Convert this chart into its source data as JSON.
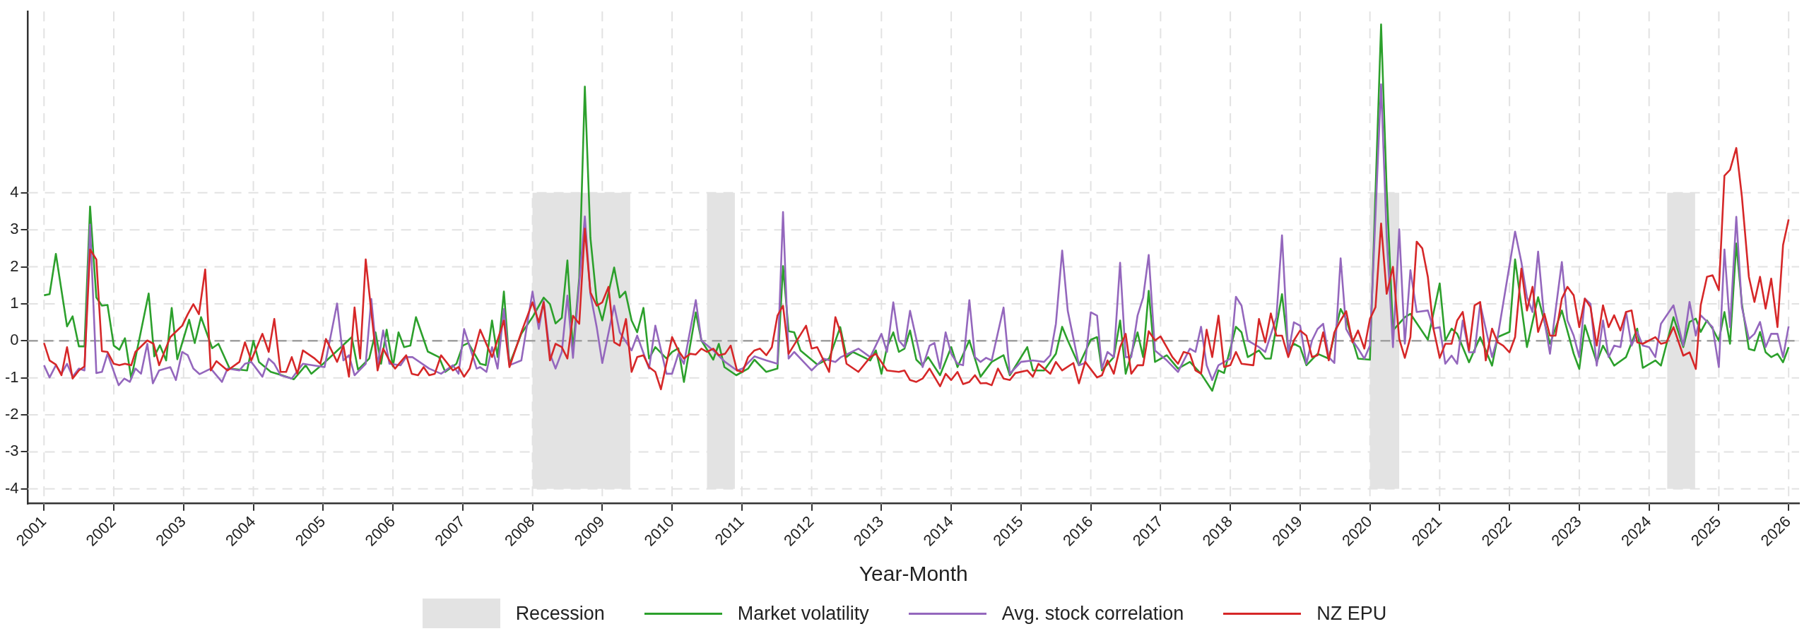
{
  "chart_data": {
    "type": "line",
    "xlabel": "Year-Month",
    "xlim": [
      2000.77,
      2026.15
    ],
    "xticks": [
      2001,
      2002,
      2003,
      2004,
      2005,
      2006,
      2007,
      2008,
      2009,
      2010,
      2011,
      2012,
      2013,
      2014,
      2015,
      2016,
      2017,
      2018,
      2019,
      2020,
      2021,
      2022,
      2023,
      2024,
      2025,
      2026
    ],
    "ylim": [
      -4.4,
      8.9
    ],
    "yticks": [
      -4,
      -3,
      -2,
      -1,
      0,
      1,
      2,
      3,
      4
    ],
    "grid": true,
    "legend": "bottom",
    "marker": "none",
    "ref_lines": [
      {
        "axis": "y",
        "value": 0,
        "color": "#a0a0a0",
        "line_style": "dashed"
      }
    ],
    "bands": [
      {
        "axis": "x",
        "from": 2008.0,
        "to": 2009.4,
        "label": "Recession",
        "color": "#e3e3e3"
      },
      {
        "axis": "x",
        "from": 2010.5,
        "to": 2010.9,
        "color": "#e3e3e3"
      },
      {
        "axis": "x",
        "from": 2020.0,
        "to": 2020.42,
        "color": "#e3e3e3"
      },
      {
        "axis": "x",
        "from": 2024.26,
        "to": 2024.66,
        "color": "#e3e3e3"
      }
    ],
    "series": [
      {
        "name": "Market volatility",
        "color": "#2ca02c",
        "x": [
          2001.0,
          2001.08,
          2001.17,
          2001.33,
          2001.41,
          2001.5,
          2001.58,
          2001.66,
          2001.75,
          2001.83,
          2001.91,
          2002.0,
          2002.08,
          2002.16,
          2002.25,
          2002.5,
          2002.58,
          2002.66,
          2002.75,
          2002.83,
          2002.91,
          2003.08,
          2003.16,
          2003.25,
          2003.41,
          2003.5,
          2003.66,
          2003.91,
          2004.0,
          2004.08,
          2004.25,
          2004.41,
          2004.58,
          2004.75,
          2004.83,
          2005.0,
          2005.41,
          2005.5,
          2005.66,
          2005.75,
          2005.83,
          2005.91,
          2006.0,
          2006.08,
          2006.16,
          2006.25,
          2006.33,
          2006.5,
          2006.66,
          2006.75,
          2006.91,
          2007.0,
          2007.08,
          2007.25,
          2007.33,
          2007.42,
          2007.5,
          2007.59,
          2007.67,
          2007.84,
          2008.0,
          2008.16,
          2008.25,
          2008.33,
          2008.42,
          2008.5,
          2008.58,
          2008.67,
          2008.75,
          2008.83,
          2008.92,
          2009.0,
          2009.17,
          2009.25,
          2009.33,
          2009.42,
          2009.5,
          2009.59,
          2009.67,
          2009.76,
          2009.92,
          2010.0,
          2010.09,
          2010.17,
          2010.34,
          2010.42,
          2010.59,
          2010.67,
          2010.75,
          2010.92,
          2011.09,
          2011.18,
          2011.35,
          2011.51,
          2011.59,
          2011.67,
          2011.75,
          2011.84,
          2012.08,
          2012.25,
          2012.41,
          2012.5,
          2012.59,
          2012.84,
          2012.92,
          2013.0,
          2013.08,
          2013.17,
          2013.25,
          2013.33,
          2013.41,
          2013.5,
          2013.58,
          2013.67,
          2013.84,
          2014.0,
          2014.09,
          2014.26,
          2014.42,
          2014.58,
          2014.75,
          2014.84,
          2015.09,
          2015.17,
          2015.33,
          2015.5,
          2015.59,
          2015.67,
          2015.83,
          2016.0,
          2016.09,
          2016.16,
          2016.33,
          2016.42,
          2016.5,
          2016.67,
          2016.75,
          2016.83,
          2016.92,
          2017.09,
          2017.25,
          2017.42,
          2017.58,
          2017.74,
          2017.83,
          2017.91,
          2018.08,
          2018.16,
          2018.25,
          2018.41,
          2018.5,
          2018.58,
          2018.74,
          2018.83,
          2018.91,
          2019.0,
          2019.09,
          2019.25,
          2019.41,
          2019.58,
          2019.66,
          2019.83,
          2020.0,
          2020.16,
          2020.24,
          2020.33,
          2020.5,
          2020.58,
          2020.83,
          2021.0,
          2021.08,
          2021.17,
          2021.25,
          2021.42,
          2021.58,
          2021.75,
          2021.83,
          2022.0,
          2022.08,
          2022.25,
          2022.41,
          2022.58,
          2022.75,
          2022.92,
          2023.0,
          2023.08,
          2023.25,
          2023.34,
          2023.5,
          2023.67,
          2023.83,
          2023.91,
          2024.09,
          2024.17,
          2024.35,
          2024.49,
          2024.58,
          2024.67,
          2024.74,
          2024.83,
          2024.91,
          2025.0,
          2025.08,
          2025.16,
          2025.25,
          2025.33,
          2025.43,
          2025.51,
          2025.59,
          2025.67,
          2025.75,
          2025.84,
          2025.92,
          2026.0
        ],
        "values": [
          1.23,
          1.26,
          2.35,
          0.39,
          0.66,
          -0.15,
          -0.15,
          3.63,
          1.17,
          0.95,
          0.97,
          -0.13,
          -0.24,
          0.07,
          -1.02,
          1.28,
          -0.42,
          -0.12,
          -0.53,
          0.89,
          -0.5,
          0.57,
          -0.06,
          0.64,
          -0.2,
          -0.08,
          -0.75,
          -0.8,
          0,
          -0.57,
          -0.84,
          -0.93,
          -1.04,
          -0.66,
          -0.89,
          -0.62,
          0.1,
          -0.78,
          -0.48,
          0.23,
          -0.62,
          0.3,
          -0.69,
          0.23,
          -0.17,
          -0.13,
          0.64,
          -0.29,
          -0.44,
          -0.84,
          -0.62,
          -0.13,
          -0.06,
          -0.62,
          -0.66,
          0.55,
          -0.44,
          1.33,
          -0.64,
          0.19,
          0.64,
          1.17,
          0.99,
          0.47,
          0.62,
          2.17,
          -0.26,
          1.71,
          6.87,
          2.78,
          1.08,
          0.55,
          1.98,
          1.17,
          1.33,
          0.55,
          0.23,
          0.89,
          -0.48,
          -0.17,
          -0.48,
          -0.3,
          -0.2,
          -1.11,
          0.77,
          0.01,
          -0.51,
          -0.08,
          -0.71,
          -0.93,
          -0.75,
          -0.51,
          -0.84,
          -0.75,
          2.02,
          0.26,
          0.23,
          -0.26,
          -0.64,
          -0.48,
          0.37,
          -0.44,
          -0.3,
          -0.53,
          -0.26,
          -0.89,
          -0.17,
          0.23,
          -0.3,
          -0.21,
          0.28,
          -0.51,
          -0.66,
          -0.44,
          -0.93,
          -0.17,
          -0.71,
          0.01,
          -0.97,
          -0.57,
          -0.39,
          -0.93,
          -0.17,
          -0.8,
          -0.8,
          -0.35,
          0.38,
          0.01,
          -0.66,
          0.03,
          0.1,
          -0.8,
          -0.44,
          0.55,
          -0.89,
          0.23,
          -0.44,
          1.35,
          -0.57,
          -0.39,
          -0.75,
          -0.57,
          -0.89,
          -1.35,
          -0.8,
          -0.87,
          0.38,
          0.23,
          -0.44,
          -0.26,
          -0.48,
          -0.48,
          1.26,
          -0.26,
          -0.08,
          -0.17,
          -0.66,
          -0.35,
          -0.48,
          0.86,
          0.59,
          -0.48,
          -0.51,
          8.55,
          4.08,
          0.28,
          0.64,
          0.73,
          0.03,
          1.55,
          0.01,
          0.33,
          0.19,
          -0.58,
          0.1,
          -0.67,
          0.1,
          0.24,
          2.2,
          -0.17,
          1.18,
          -0.08,
          0.82,
          -0.35,
          -0.76,
          0.42,
          -0.58,
          -0.13,
          -0.67,
          -0.44,
          0.33,
          -0.73,
          -0.53,
          -0.67,
          0.64,
          -0.17,
          0.51,
          0.6,
          0.24,
          0.55,
          0.33,
          0.0,
          0.78,
          -0.08,
          2.63,
          1.0,
          -0.22,
          -0.26,
          0.24,
          -0.31,
          -0.44,
          -0.35,
          -0.58,
          -0.17
        ]
      },
      {
        "name": "Avg. stock correlation",
        "color": "#9467bd",
        "x": [
          2001.0,
          2001.08,
          2001.17,
          2001.25,
          2001.33,
          2001.41,
          2001.5,
          2001.58,
          2001.66,
          2001.75,
          2001.83,
          2001.91,
          2002.07,
          2002.15,
          2002.23,
          2002.31,
          2002.39,
          2002.48,
          2002.56,
          2002.65,
          2002.81,
          2002.89,
          2002.98,
          2003.06,
          2003.14,
          2003.23,
          2003.39,
          2003.55,
          2003.63,
          2003.8,
          2003.88,
          2003.97,
          2004.13,
          2004.22,
          2004.3,
          2004.39,
          2004.55,
          2004.71,
          2005.02,
          2005.2,
          2005.29,
          2005.37,
          2005.45,
          2005.61,
          2005.69,
          2005.78,
          2005.86,
          2005.95,
          2006.11,
          2006.19,
          2006.28,
          2006.52,
          2006.69,
          2006.86,
          2006.94,
          2007.02,
          2007.2,
          2007.25,
          2007.34,
          2007.42,
          2007.5,
          2007.59,
          2007.67,
          2007.84,
          2008.0,
          2008.09,
          2008.16,
          2008.25,
          2008.33,
          2008.42,
          2008.5,
          2008.58,
          2008.75,
          2008.83,
          2008.92,
          2009.0,
          2009.17,
          2009.25,
          2009.42,
          2009.5,
          2009.67,
          2009.76,
          2009.92,
          2010.0,
          2010.09,
          2010.17,
          2010.34,
          2010.42,
          2010.59,
          2010.76,
          2010.93,
          2011.01,
          2011.18,
          2011.35,
          2011.51,
          2011.59,
          2011.67,
          2011.75,
          2012.0,
          2012.17,
          2012.34,
          2012.42,
          2012.67,
          2012.84,
          2013.0,
          2013.08,
          2013.17,
          2013.25,
          2013.33,
          2013.41,
          2013.59,
          2013.69,
          2013.76,
          2013.84,
          2013.92,
          2014.0,
          2014.09,
          2014.17,
          2014.26,
          2014.34,
          2014.42,
          2014.5,
          2014.58,
          2014.75,
          2014.84,
          2015.0,
          2015.17,
          2015.33,
          2015.42,
          2015.5,
          2015.59,
          2015.67,
          2015.83,
          2015.92,
          2016.0,
          2016.09,
          2016.16,
          2016.24,
          2016.33,
          2016.42,
          2016.5,
          2016.58,
          2016.67,
          2016.75,
          2016.83,
          2016.92,
          2017.09,
          2017.25,
          2017.42,
          2017.5,
          2017.58,
          2017.66,
          2017.74,
          2017.83,
          2018.0,
          2018.08,
          2018.16,
          2018.25,
          2018.41,
          2018.5,
          2018.66,
          2018.74,
          2018.83,
          2018.91,
          2019.0,
          2019.09,
          2019.17,
          2019.25,
          2019.33,
          2019.41,
          2019.49,
          2019.58,
          2019.66,
          2019.75,
          2019.83,
          2019.92,
          2020.0,
          2020.16,
          2020.24,
          2020.33,
          2020.42,
          2020.5,
          2020.58,
          2020.67,
          2020.83,
          2020.91,
          2021.0,
          2021.08,
          2021.17,
          2021.25,
          2021.33,
          2021.42,
          2021.5,
          2021.58,
          2021.75,
          2021.83,
          2022.08,
          2022.17,
          2022.25,
          2022.33,
          2022.41,
          2022.5,
          2022.58,
          2022.75,
          2022.83,
          2022.92,
          2023.0,
          2023.08,
          2023.16,
          2023.25,
          2023.34,
          2023.42,
          2023.5,
          2023.59,
          2023.67,
          2023.75,
          2023.83,
          2023.91,
          2024.0,
          2024.09,
          2024.17,
          2024.35,
          2024.49,
          2024.58,
          2024.67,
          2024.74,
          2024.91,
          2025.0,
          2025.08,
          2025.16,
          2025.25,
          2025.33,
          2025.43,
          2025.51,
          2025.59,
          2025.67,
          2025.75,
          2025.84,
          2025.92,
          2026.0
        ],
        "values": [
          -0.66,
          -0.99,
          -0.66,
          -0.89,
          -0.62,
          -0.97,
          -0.75,
          -0.8,
          3.14,
          -0.87,
          -0.84,
          -0.35,
          -1.2,
          -1.02,
          -1.11,
          -0.75,
          -0.89,
          -0.08,
          -1.15,
          -0.8,
          -0.71,
          -1.06,
          -0.3,
          -0.39,
          -0.75,
          -0.9,
          -0.75,
          -1.11,
          -0.75,
          -0.8,
          -0.62,
          -0.57,
          -0.97,
          -0.48,
          -0.62,
          -0.93,
          -1.02,
          -0.62,
          -0.71,
          1.01,
          -0.53,
          -0.39,
          -0.93,
          -0.62,
          1.13,
          -0.66,
          0.28,
          -0.62,
          -0.66,
          -0.44,
          -0.44,
          -0.75,
          -0.89,
          -0.66,
          -0.89,
          0.32,
          -0.75,
          -0.71,
          -0.84,
          -0.17,
          -0.75,
          0.86,
          -0.66,
          -0.53,
          1.33,
          0.32,
          1.08,
          -0.35,
          -0.75,
          -0.3,
          1.22,
          -0.46,
          3.36,
          1.26,
          0.37,
          -0.6,
          0.95,
          0.23,
          -0.26,
          0.14,
          -0.75,
          0.41,
          -0.89,
          -0.89,
          -0.35,
          -0.62,
          1.1,
          0.01,
          -0.26,
          -0.57,
          -0.8,
          -0.75,
          -0.42,
          -0.53,
          -0.62,
          3.48,
          -0.48,
          -0.3,
          -0.8,
          -0.48,
          -0.57,
          -0.44,
          -0.21,
          -0.44,
          0.19,
          -0.3,
          1.04,
          0.01,
          -0.17,
          0.81,
          -0.71,
          -0.13,
          -0.06,
          -0.75,
          0.23,
          -0.35,
          -0.62,
          -0.66,
          1.1,
          -0.44,
          -0.57,
          -0.46,
          -0.53,
          0.9,
          -0.89,
          -0.57,
          -0.53,
          -0.57,
          -0.39,
          0.46,
          2.44,
          0.81,
          -0.66,
          -0.6,
          0.77,
          0.68,
          -0.75,
          -0.3,
          -0.44,
          2.11,
          -0.44,
          -0.44,
          0.68,
          1.17,
          2.32,
          -0.26,
          -0.53,
          -0.84,
          -0.21,
          -0.3,
          0.38,
          -0.66,
          -1.06,
          -0.66,
          -0.48,
          1.19,
          0.95,
          0.01,
          -0.17,
          -0.3,
          0.64,
          2.85,
          -0.35,
          0.5,
          0.41,
          -0.62,
          0.01,
          0.32,
          0.46,
          -0.44,
          -0.6,
          2.23,
          0.32,
          0.01,
          -0.21,
          -0.48,
          -0.13,
          6.93,
          2.81,
          -0.17,
          3.01,
          -0.08,
          1.91,
          0.78,
          0.82,
          0.33,
          0.37,
          -0.62,
          -0.4,
          -0.62,
          0.55,
          -0.31,
          -0.31,
          1.0,
          -0.44,
          0.1,
          2.95,
          2.13,
          1.18,
          0.78,
          2.41,
          0.55,
          -0.35,
          2.13,
          0.55,
          0.14,
          -0.44,
          1.14,
          1.0,
          -0.67,
          0.55,
          -0.44,
          -0.13,
          -0.17,
          0.78,
          -0.13,
          0.24,
          -0.13,
          -0.17,
          -0.44,
          0.46,
          0.96,
          -0.13,
          1.05,
          0.14,
          0.69,
          0.37,
          -0.71,
          2.47,
          0.37,
          3.35,
          0.91,
          0.05,
          0.19,
          0.51,
          -0.17,
          0.19,
          0.19,
          -0.44,
          0.39
        ]
      },
      {
        "name": "NZ EPU",
        "color": "#d62728",
        "x": [
          2001.0,
          2001.08,
          2001.17,
          2001.25,
          2001.33,
          2001.41,
          2001.5,
          2001.58,
          2001.66,
          2001.75,
          2001.83,
          2001.91,
          2002.0,
          2002.08,
          2002.16,
          2002.25,
          2002.31,
          2002.48,
          2002.57,
          2002.65,
          2002.81,
          2002.98,
          2003.06,
          2003.14,
          2003.22,
          2003.31,
          2003.39,
          2003.47,
          2003.63,
          2003.8,
          2003.88,
          2003.97,
          2004.13,
          2004.22,
          2004.3,
          2004.39,
          2004.47,
          2004.55,
          2004.63,
          2004.71,
          2004.88,
          2004.96,
          2005.04,
          2005.2,
          2005.29,
          2005.37,
          2005.45,
          2005.53,
          2005.61,
          2005.78,
          2005.86,
          2005.95,
          2006.03,
          2006.19,
          2006.27,
          2006.36,
          2006.44,
          2006.52,
          2006.6,
          2006.69,
          2006.86,
          2006.94,
          2007.02,
          2007.1,
          2007.25,
          2007.42,
          2007.59,
          2007.67,
          2007.84,
          2008.0,
          2008.09,
          2008.16,
          2008.25,
          2008.33,
          2008.42,
          2008.5,
          2008.58,
          2008.67,
          2008.75,
          2008.83,
          2008.92,
          2009.0,
          2009.09,
          2009.17,
          2009.25,
          2009.34,
          2009.42,
          2009.5,
          2009.59,
          2009.67,
          2009.76,
          2009.84,
          2010.0,
          2010.09,
          2010.17,
          2010.26,
          2010.34,
          2010.42,
          2010.5,
          2010.59,
          2010.67,
          2010.76,
          2010.84,
          2010.93,
          2011.01,
          2011.09,
          2011.18,
          2011.26,
          2011.35,
          2011.43,
          2011.51,
          2011.59,
          2011.67,
          2011.92,
          2012.0,
          2012.08,
          2012.25,
          2012.34,
          2012.42,
          2012.5,
          2012.67,
          2012.84,
          2012.92,
          2013.08,
          2013.25,
          2013.33,
          2013.41,
          2013.5,
          2013.59,
          2013.69,
          2013.84,
          2013.92,
          2014.0,
          2014.09,
          2014.17,
          2014.26,
          2014.34,
          2014.42,
          2014.5,
          2014.58,
          2014.67,
          2014.75,
          2014.84,
          2014.92,
          2015.09,
          2015.17,
          2015.25,
          2015.42,
          2015.5,
          2015.59,
          2015.75,
          2015.83,
          2015.92,
          2016.09,
          2016.16,
          2016.24,
          2016.33,
          2016.42,
          2016.5,
          2016.58,
          2016.67,
          2016.75,
          2016.83,
          2016.92,
          2017.0,
          2017.17,
          2017.25,
          2017.33,
          2017.42,
          2017.5,
          2017.58,
          2017.66,
          2017.74,
          2017.83,
          2017.91,
          2018.0,
          2018.08,
          2018.16,
          2018.33,
          2018.41,
          2018.5,
          2018.58,
          2018.66,
          2018.74,
          2018.83,
          2018.91,
          2019.0,
          2019.09,
          2019.17,
          2019.25,
          2019.33,
          2019.41,
          2019.49,
          2019.58,
          2019.66,
          2019.75,
          2019.83,
          2019.92,
          2020.0,
          2020.08,
          2020.16,
          2020.24,
          2020.33,
          2020.42,
          2020.5,
          2020.58,
          2020.67,
          2020.75,
          2020.83,
          2020.91,
          2021.0,
          2021.08,
          2021.17,
          2021.25,
          2021.33,
          2021.42,
          2021.5,
          2021.58,
          2021.66,
          2021.75,
          2021.83,
          2021.91,
          2022.0,
          2022.08,
          2022.17,
          2022.25,
          2022.33,
          2022.41,
          2022.5,
          2022.58,
          2022.66,
          2022.75,
          2022.83,
          2022.92,
          2023.0,
          2023.08,
          2023.16,
          2023.25,
          2023.34,
          2023.42,
          2023.5,
          2023.59,
          2023.67,
          2023.75,
          2023.83,
          2023.91,
          2024.09,
          2024.17,
          2024.25,
          2024.35,
          2024.49,
          2024.58,
          2024.67,
          2024.74,
          2024.83,
          2024.91,
          2025.0,
          2025.08,
          2025.16,
          2025.25,
          2025.33,
          2025.43,
          2025.51,
          2025.59,
          2025.67,
          2025.75,
          2025.84,
          2025.92,
          2026.0
        ],
        "values": [
          -0.06,
          -0.53,
          -0.64,
          -0.93,
          -0.17,
          -1.02,
          -0.8,
          -0.69,
          2.47,
          2.2,
          -0.28,
          -0.3,
          -0.62,
          -0.66,
          -0.62,
          -0.66,
          -0.3,
          0.01,
          -0.08,
          -0.66,
          0.1,
          0.41,
          0.72,
          0.99,
          0.72,
          1.93,
          -0.8,
          -0.55,
          -0.8,
          -0.57,
          -0.04,
          -0.53,
          0.19,
          -0.3,
          0.59,
          -0.84,
          -0.84,
          -0.44,
          -0.89,
          -0.26,
          -0.48,
          -0.62,
          0.05,
          -0.57,
          -0.13,
          -0.97,
          0.9,
          -0.48,
          2.2,
          -0.8,
          -0.21,
          -0.53,
          -0.75,
          -0.39,
          -0.89,
          -0.93,
          -0.71,
          -0.93,
          -0.89,
          -0.39,
          -0.8,
          -0.71,
          -0.97,
          -0.75,
          0.3,
          -0.44,
          0.55,
          -0.71,
          0.23,
          1.04,
          0.5,
          1.04,
          -0.53,
          -0.08,
          -0.17,
          -0.48,
          0.68,
          0.46,
          3.03,
          1.31,
          0.95,
          1.04,
          1.46,
          -0.04,
          -0.13,
          0.59,
          -0.84,
          -0.44,
          -0.39,
          -0.71,
          -0.84,
          -1.31,
          0.1,
          -0.26,
          -0.48,
          -0.35,
          -0.37,
          -0.21,
          -0.3,
          -0.21,
          -0.39,
          -0.35,
          -0.13,
          -0.8,
          -0.84,
          -0.44,
          -0.26,
          -0.21,
          -0.39,
          -0.17,
          0.68,
          0.95,
          -0.35,
          0.41,
          -0.21,
          -0.17,
          -0.84,
          0.64,
          0.19,
          -0.62,
          -0.84,
          -0.44,
          -0.35,
          -0.8,
          -0.84,
          -0.8,
          -1.06,
          -1.11,
          -1.02,
          -0.75,
          -1.23,
          -0.89,
          -1.06,
          -0.84,
          -1.17,
          -1.11,
          -0.93,
          -1.15,
          -1.14,
          -1.2,
          -0.75,
          -1.02,
          -1.06,
          -0.87,
          -0.8,
          -0.97,
          -0.62,
          -0.89,
          -0.57,
          -0.8,
          -0.6,
          -1.15,
          -0.57,
          -0.99,
          -0.93,
          -0.53,
          -0.89,
          -0.17,
          0.19,
          -0.89,
          -0.66,
          -0.66,
          0.26,
          0.01,
          0.12,
          -0.44,
          -0.62,
          -0.3,
          -0.35,
          -0.8,
          -0.89,
          0.3,
          -0.44,
          0.68,
          -0.71,
          -0.66,
          -0.3,
          -0.62,
          -0.66,
          0.59,
          -0.04,
          0.74,
          0.14,
          0.14,
          -0.44,
          0.01,
          0.28,
          0.14,
          -0.44,
          -0.39,
          0.23,
          -0.53,
          0.23,
          0.55,
          0.8,
          -0.04,
          0.28,
          -0.21,
          0.59,
          0.91,
          3.17,
          1.27,
          2.0,
          0.05,
          -0.46,
          0.1,
          2.68,
          2.5,
          1.73,
          0.33,
          -0.46,
          -0.08,
          -0.08,
          0.55,
          0.78,
          -0.26,
          0.96,
          1.05,
          -0.53,
          0.33,
          -0.04,
          -0.13,
          -0.31,
          0.1,
          1.95,
          0.82,
          1.46,
          0.24,
          0.73,
          0.14,
          0.14,
          1.14,
          1.46,
          1.23,
          0.37,
          1.14,
          0.91,
          -0.13,
          0.96,
          0.37,
          0.69,
          0.28,
          0.78,
          0.82,
          -0.04,
          -0.08,
          0.1,
          -0.08,
          -0.04,
          0.37,
          -0.4,
          -0.31,
          -0.76,
          0.96,
          1.73,
          1.77,
          1.37,
          4.46,
          4.62,
          5.21,
          3.9,
          1.73,
          1.05,
          1.73,
          0.87,
          1.68,
          0.37,
          2.59,
          3.28
        ]
      }
    ]
  }
}
